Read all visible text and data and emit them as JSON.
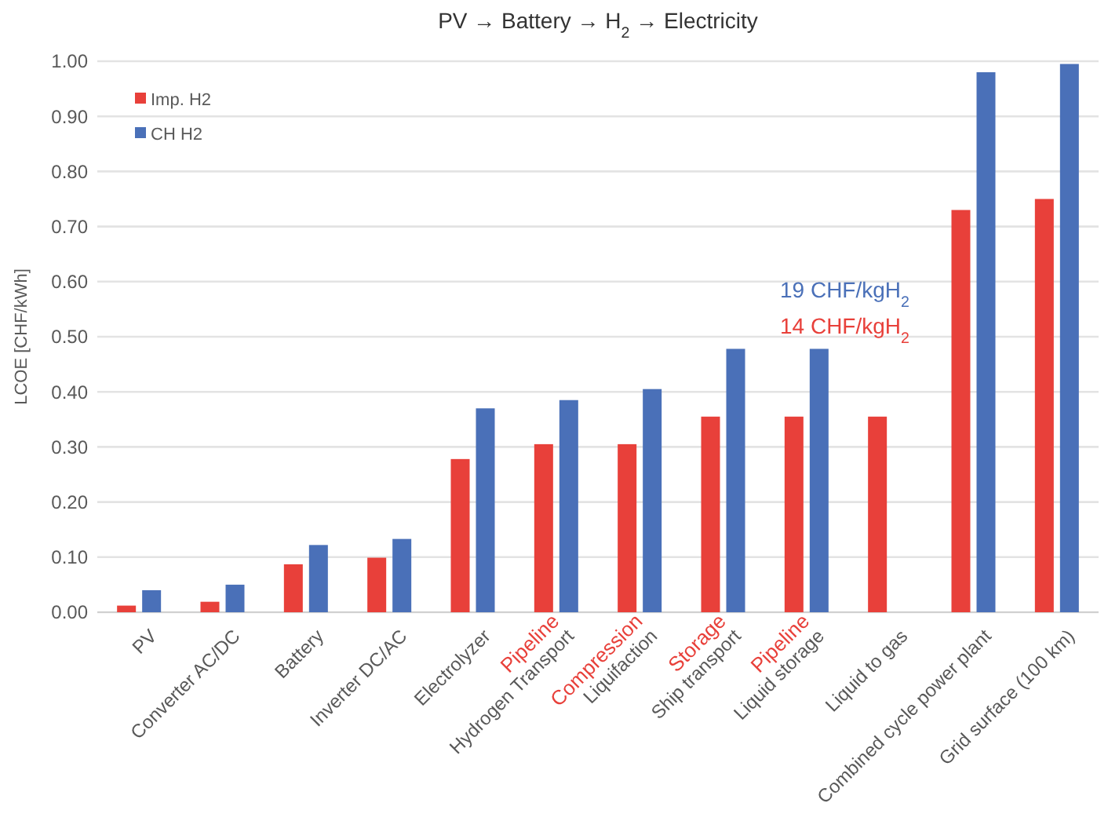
{
  "chart_data": {
    "type": "bar",
    "title": "PV → Battery → H$_{2}$ → Electricity",
    "ylabel": "LCOE [CHF/kWh]",
    "categories": [
      "PV",
      "Converter AC/DC",
      "Battery",
      "Inverter DC/AC",
      "Electrolyzer",
      "Hydrogen Transport",
      "Liquifaction",
      "Ship transport",
      "Liquid storage",
      "Liquid to gas",
      "Combined cycle power plant",
      "Grid surface (100 km)"
    ],
    "series": [
      {
        "name": "Imp. H2",
        "color": "#e8403a",
        "values": [
          0.012,
          0.019,
          0.087,
          0.099,
          0.278,
          0.305,
          0.305,
          0.355,
          0.355,
          0.355,
          0.73,
          0.75
        ]
      },
      {
        "name": "CH H2",
        "color": "#4a70b8",
        "values": [
          0.04,
          0.05,
          0.122,
          0.133,
          0.37,
          0.385,
          0.405,
          0.478,
          0.478,
          null,
          0.98,
          0.995
        ]
      }
    ],
    "ylim": [
      0,
      1
    ],
    "yticks": [
      {
        "value": 0,
        "label": "0.00"
      },
      {
        "value": 0.1,
        "label": "0.10"
      },
      {
        "value": 0.2,
        "label": "0.20"
      },
      {
        "value": 0.3,
        "label": "0.30"
      },
      {
        "value": 0.4,
        "label": "0.40"
      },
      {
        "value": 0.5,
        "label": "0.50"
      },
      {
        "value": 0.6,
        "label": "0.60"
      },
      {
        "value": 0.7,
        "label": "0.70"
      },
      {
        "value": 0.8,
        "label": "0.80"
      },
      {
        "value": 0.9,
        "label": "0.90"
      },
      {
        "value": 1,
        "label": "1.00"
      }
    ],
    "grid": "y",
    "legend": "top left",
    "annotations": [
      "19 CHF/kgH$_{2}$",
      "14 CHF/kgH$_{2}$",
      "Pipeline",
      "Compression",
      "Storage",
      "Pipeline"
    ]
  }
}
